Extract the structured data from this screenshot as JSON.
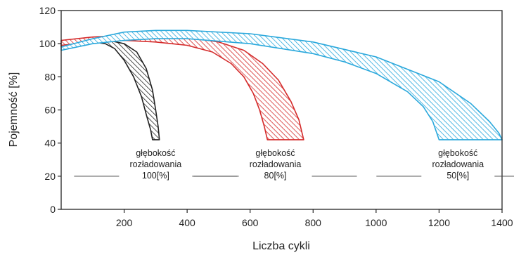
{
  "chart_data": {
    "type": "area",
    "xlabel": "Liczba cykli",
    "ylabel": "Pojemność [%]",
    "xlim": [
      0,
      1400
    ],
    "ylim": [
      0,
      120
    ],
    "x_ticks": [
      200,
      400,
      600,
      800,
      1000,
      1200,
      1400
    ],
    "y_ticks": [
      0,
      20,
      40,
      60,
      80,
      100,
      120
    ],
    "grid": false,
    "legend": "none",
    "bands": [
      {
        "annotation": [
          "głębokość",
          "rozładowania",
          "100[%]"
        ],
        "annotation_x": 300,
        "color": "#222222",
        "upper": [
          [
            0,
            100
          ],
          [
            50,
            102
          ],
          [
            100,
            103
          ],
          [
            150,
            102
          ],
          [
            200,
            100
          ],
          [
            240,
            95
          ],
          [
            270,
            85
          ],
          [
            290,
            72
          ],
          [
            300,
            60
          ],
          [
            308,
            50
          ],
          [
            312,
            42
          ]
        ],
        "lower": [
          [
            0,
            98
          ],
          [
            50,
            100
          ],
          [
            100,
            101
          ],
          [
            140,
            100
          ],
          [
            170,
            97
          ],
          [
            200,
            90
          ],
          [
            230,
            80
          ],
          [
            255,
            68
          ],
          [
            272,
            56
          ],
          [
            284,
            48
          ],
          [
            290,
            42
          ]
        ]
      },
      {
        "annotation": [
          "głębokość",
          "rozładowania",
          "80[%]"
        ],
        "annotation_x": 680,
        "color": "#d42a2a",
        "upper": [
          [
            0,
            102
          ],
          [
            100,
            104
          ],
          [
            200,
            105
          ],
          [
            300,
            105
          ],
          [
            400,
            104
          ],
          [
            500,
            101
          ],
          [
            580,
            96
          ],
          [
            640,
            88
          ],
          [
            690,
            78
          ],
          [
            730,
            65
          ],
          [
            755,
            54
          ],
          [
            770,
            42
          ]
        ],
        "lower": [
          [
            0,
            99
          ],
          [
            100,
            101
          ],
          [
            200,
            102
          ],
          [
            300,
            101
          ],
          [
            400,
            99
          ],
          [
            480,
            95
          ],
          [
            540,
            88
          ],
          [
            580,
            80
          ],
          [
            610,
            70
          ],
          [
            630,
            60
          ],
          [
            645,
            50
          ],
          [
            655,
            42
          ]
        ]
      },
      {
        "annotation": [
          "głębokość",
          "rozładowania",
          "50[%]"
        ],
        "annotation_x": 1260,
        "color": "#2aa8dc",
        "upper": [
          [
            0,
            98
          ],
          [
            100,
            103
          ],
          [
            200,
            107
          ],
          [
            300,
            108
          ],
          [
            400,
            108
          ],
          [
            600,
            106
          ],
          [
            800,
            101
          ],
          [
            1000,
            92
          ],
          [
            1200,
            77
          ],
          [
            1300,
            64
          ],
          [
            1360,
            53
          ],
          [
            1390,
            46
          ],
          [
            1400,
            42
          ]
        ],
        "lower": [
          [
            0,
            96
          ],
          [
            100,
            100
          ],
          [
            200,
            102
          ],
          [
            300,
            103
          ],
          [
            400,
            103
          ],
          [
            600,
            100
          ],
          [
            800,
            94
          ],
          [
            900,
            89
          ],
          [
            1000,
            82
          ],
          [
            1100,
            71
          ],
          [
            1150,
            62
          ],
          [
            1180,
            53
          ],
          [
            1200,
            42
          ]
        ]
      }
    ]
  }
}
